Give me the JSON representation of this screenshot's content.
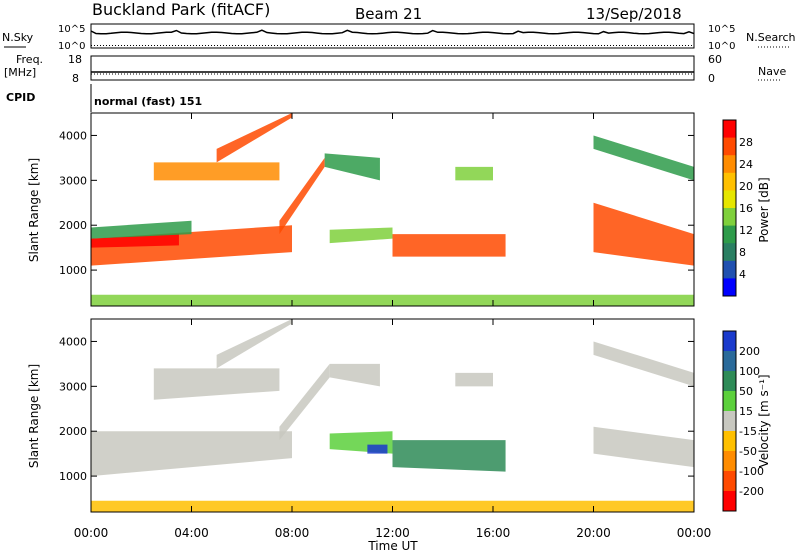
{
  "header": {
    "station": "Buckland Park (fitACF)",
    "beam": "Beam 21",
    "date": "13/Sep/2018"
  },
  "strips": {
    "nsky_label": "N.Sky",
    "nsky_ticks": [
      "10^5",
      "10^0"
    ],
    "nsearch_label": "N.Search",
    "freq_label": "Freq.",
    "freq_unit": "[MHz]",
    "freq_ticks": [
      "18",
      "8"
    ],
    "nave_label": "Nave",
    "nave_ticks": [
      "60",
      "0"
    ],
    "cpid_label": "CPID",
    "cpid_text": "normal (fast) 151"
  },
  "colorbars": {
    "power": {
      "label": "Power [dB]",
      "ticks": [
        "28",
        "24",
        "20",
        "16",
        "12",
        "8",
        "4"
      ],
      "colors": [
        "#ff0000",
        "#ff4a00",
        "#ff8c00",
        "#ffc000",
        "#e6e600",
        "#7fd03c",
        "#2e9b4a",
        "#2a7f62",
        "#2050b0",
        "#0000ff"
      ]
    },
    "velocity": {
      "label": "Velocity [m s⁻¹]",
      "ticks": [
        "200",
        "100",
        "50",
        "15",
        "-15",
        "-50",
        "-100",
        "-200"
      ],
      "colors": [
        "#1a3acc",
        "#2a6a9a",
        "#2e8b57",
        "#5cd03c",
        "#c8c8c0",
        "#ffc000",
        "#ff8c00",
        "#ff4a00",
        "#ff0000"
      ]
    }
  },
  "chart_data": [
    {
      "type": "heatmap",
      "name": "power-panel",
      "ylabel": "Slant Range [km]",
      "x_ticks": [
        "00:00",
        "04:00",
        "08:00",
        "12:00",
        "16:00",
        "20:00",
        "00:00"
      ],
      "y_ticks": [
        "4000",
        "3000",
        "2000",
        "1000"
      ],
      "xlim_hours": [
        0,
        24
      ],
      "ylim_km": [
        200,
        4500
      ],
      "bands": [
        {
          "t0": 0.0,
          "t1": 8.0,
          "r0": 1100,
          "r1": 1400,
          "r2": 1700,
          "r3": 2000,
          "color": "#ff4a00"
        },
        {
          "t0": 0.0,
          "t1": 3.5,
          "r0": 1500,
          "r1": 1550,
          "r2": 1700,
          "r3": 1800,
          "color": "#ff0000"
        },
        {
          "t0": 0.0,
          "t1": 4.0,
          "r0": 1700,
          "r1": 1800,
          "r2": 1950,
          "r3": 2100,
          "color": "#2e9b4a"
        },
        {
          "t0": 7.5,
          "t1": 9.3,
          "r0": 1800,
          "r1": 3300,
          "r2": 2100,
          "r3": 3500,
          "color": "#ff4a00"
        },
        {
          "t0": 9.3,
          "t1": 11.5,
          "r0": 3300,
          "r1": 3000,
          "r2": 3600,
          "r3": 3500,
          "color": "#2e9b4a"
        },
        {
          "t0": 2.5,
          "t1": 7.5,
          "r0": 3000,
          "r1": 3000,
          "r2": 3400,
          "r3": 3400,
          "color": "#ff8c00"
        },
        {
          "t0": 5.0,
          "t1": 8.0,
          "r0": 3400,
          "r1": 4400,
          "r2": 3700,
          "r3": 4500,
          "color": "#ff4a00"
        },
        {
          "t0": 9.5,
          "t1": 12.0,
          "r0": 1600,
          "r1": 1700,
          "r2": 1900,
          "r3": 1950,
          "color": "#7fd03c"
        },
        {
          "t0": 12.0,
          "t1": 16.5,
          "r0": 1300,
          "r1": 1300,
          "r2": 1800,
          "r3": 1800,
          "color": "#ff4a00"
        },
        {
          "t0": 14.5,
          "t1": 16.0,
          "r0": 3000,
          "r1": 3000,
          "r2": 3300,
          "r3": 3300,
          "color": "#7fd03c"
        },
        {
          "t0": 20.0,
          "t1": 24.0,
          "r0": 1400,
          "r1": 1100,
          "r2": 2500,
          "r3": 1800,
          "color": "#ff4a00"
        },
        {
          "t0": 20.0,
          "t1": 24.0,
          "r0": 3700,
          "r1": 3000,
          "r2": 4000,
          "r3": 3300,
          "color": "#2e9b4a"
        },
        {
          "t0": 0.0,
          "t1": 24.0,
          "r0": 200,
          "r1": 200,
          "r2": 450,
          "r3": 450,
          "color": "#7fd03c"
        }
      ]
    },
    {
      "type": "heatmap",
      "name": "velocity-panel",
      "ylabel": "Slant Range [km]",
      "xlabel": "Time UT",
      "x_ticks": [
        "00:00",
        "04:00",
        "08:00",
        "12:00",
        "16:00",
        "20:00",
        "00:00"
      ],
      "y_ticks": [
        "4000",
        "3000",
        "2000",
        "1000"
      ],
      "xlim_hours": [
        0,
        24
      ],
      "ylim_km": [
        200,
        4500
      ],
      "bands": [
        {
          "t0": 0.0,
          "t1": 8.0,
          "r0": 1000,
          "r1": 1400,
          "r2": 2000,
          "r3": 2000,
          "color": "#c8c8c0"
        },
        {
          "t0": 7.5,
          "t1": 9.5,
          "r0": 1800,
          "r1": 3200,
          "r2": 2100,
          "r3": 3500,
          "color": "#c8c8c0"
        },
        {
          "t0": 9.5,
          "t1": 11.5,
          "r0": 3200,
          "r1": 3000,
          "r2": 3500,
          "r3": 3500,
          "color": "#c8c8c0"
        },
        {
          "t0": 2.5,
          "t1": 7.5,
          "r0": 2700,
          "r1": 2900,
          "r2": 3400,
          "r3": 3400,
          "color": "#c8c8c0"
        },
        {
          "t0": 5.0,
          "t1": 8.0,
          "r0": 3400,
          "r1": 4400,
          "r2": 3700,
          "r3": 4500,
          "color": "#c8c8c0"
        },
        {
          "t0": 9.5,
          "t1": 12.0,
          "r0": 1600,
          "r1": 1500,
          "r2": 1950,
          "r3": 2000,
          "color": "#5cd03c"
        },
        {
          "t0": 11.0,
          "t1": 11.8,
          "r0": 1500,
          "r1": 1500,
          "r2": 1700,
          "r3": 1700,
          "color": "#1a3acc"
        },
        {
          "t0": 12.0,
          "t1": 16.5,
          "r0": 1200,
          "r1": 1100,
          "r2": 1800,
          "r3": 1800,
          "color": "#2e8b57"
        },
        {
          "t0": 14.5,
          "t1": 16.0,
          "r0": 3000,
          "r1": 3000,
          "r2": 3300,
          "r3": 3300,
          "color": "#c8c8c0"
        },
        {
          "t0": 20.0,
          "t1": 24.0,
          "r0": 1500,
          "r1": 1200,
          "r2": 2100,
          "r3": 1800,
          "color": "#c8c8c0"
        },
        {
          "t0": 20.0,
          "t1": 24.0,
          "r0": 3700,
          "r1": 3000,
          "r2": 4000,
          "r3": 3300,
          "color": "#c8c8c0"
        },
        {
          "t0": 0.0,
          "t1": 24.0,
          "r0": 200,
          "r1": 200,
          "r2": 450,
          "r3": 450,
          "color": "#ffc000"
        }
      ]
    }
  ]
}
